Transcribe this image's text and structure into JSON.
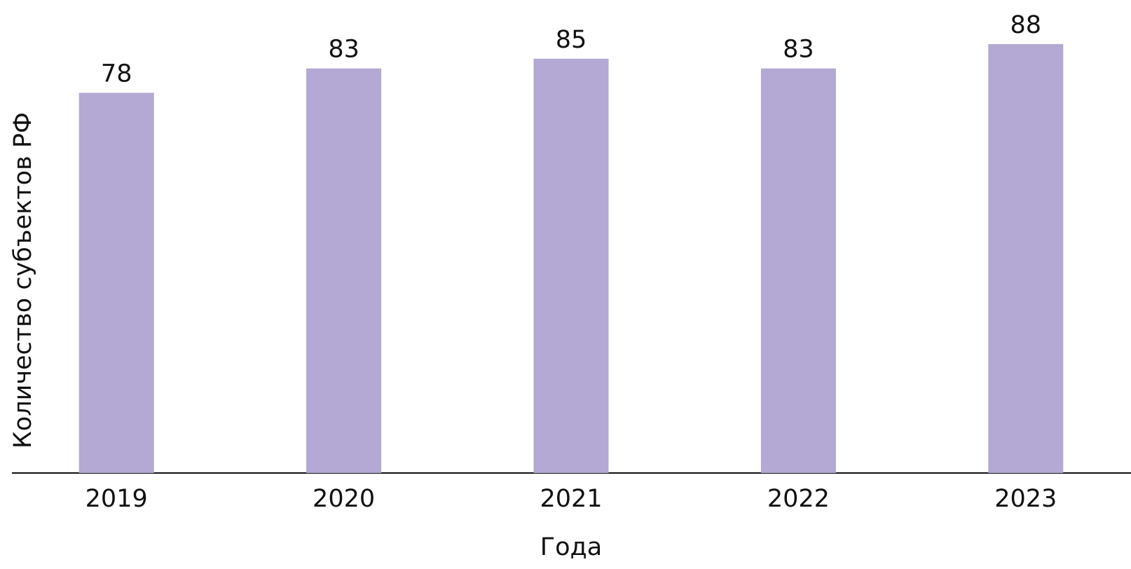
{
  "chart_data": {
    "type": "bar",
    "x_label": "Года",
    "y_label": "Количество субъектов РФ",
    "categories": [
      "2019",
      "2020",
      "2021",
      "2022",
      "2023"
    ],
    "values": [
      78,
      83,
      85,
      83,
      88
    ],
    "color": "#b3a9d4",
    "ylim": [
      0,
      90
    ]
  }
}
